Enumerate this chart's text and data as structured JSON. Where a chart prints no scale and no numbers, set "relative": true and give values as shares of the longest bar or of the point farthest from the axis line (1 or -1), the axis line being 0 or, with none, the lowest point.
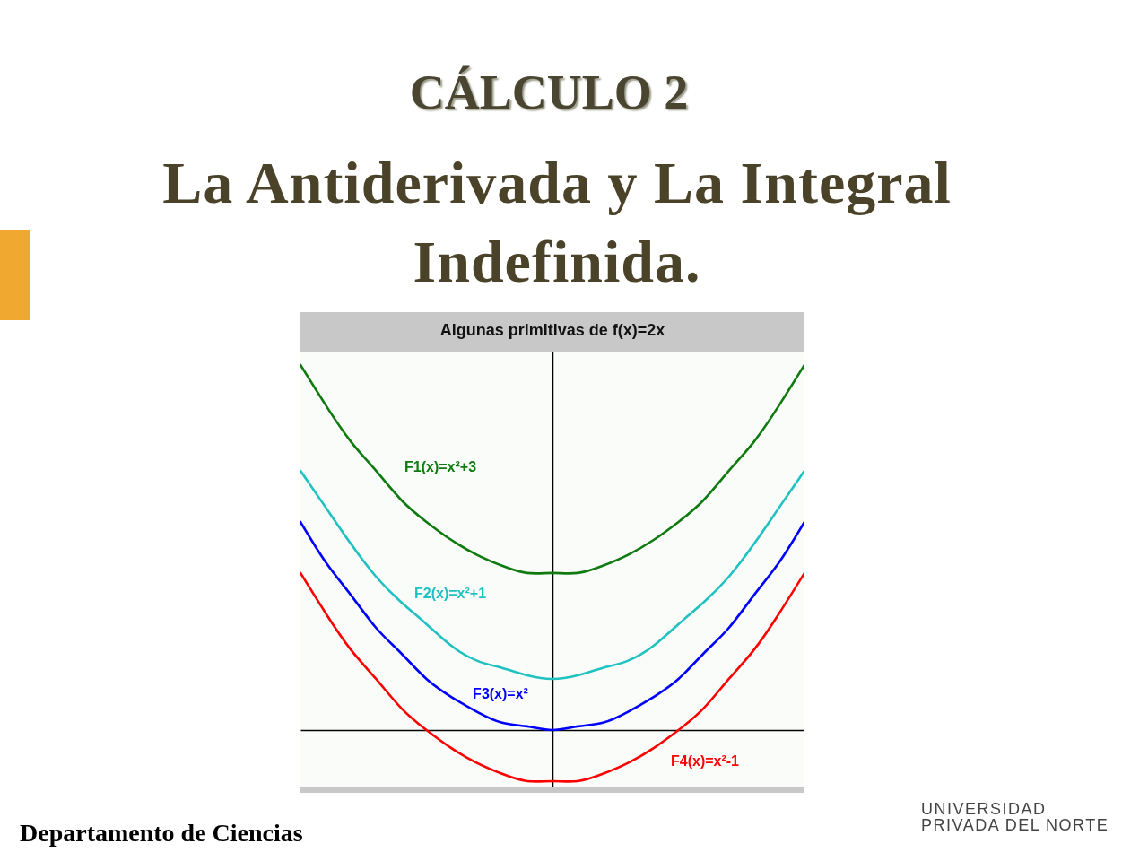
{
  "chart_data": {
    "type": "line",
    "title": "Algunas primitivas de f(x)=2x",
    "relative": true,
    "categories": [
      null,
      null,
      null,
      null,
      null,
      null,
      null,
      null,
      null,
      null,
      null,
      null,
      null,
      null,
      null,
      null,
      null,
      null,
      null,
      null,
      null
    ],
    "series": [
      {
        "name": "F1(x)=x²+3",
        "color": "#0f7a0f",
        "values": [
          1,
          0.89,
          0.79,
          0.71,
          0.63,
          0.57,
          0.52,
          0.48,
          0.45,
          0.43,
          0.43,
          0.43,
          0.45,
          0.48,
          0.52,
          0.57,
          0.63,
          0.71,
          0.79,
          0.89,
          1
        ]
      },
      {
        "name": "F2(x)=x²+1",
        "color": "#1fc1c1",
        "values": [
          0.71,
          0.61,
          0.51,
          0.42,
          0.35,
          0.29,
          0.23,
          0.19,
          0.17,
          0.15,
          0.14,
          0.15,
          0.17,
          0.19,
          0.23,
          0.29,
          0.35,
          0.42,
          0.51,
          0.61,
          0.71
        ]
      },
      {
        "name": "F3(x)=x²",
        "color": "#0000ff",
        "values": [
          0.57,
          0.46,
          0.37,
          0.28,
          0.21,
          0.14,
          0.09,
          0.05,
          0.02,
          0.01,
          0,
          0.01,
          0.02,
          0.05,
          0.09,
          0.14,
          0.21,
          0.28,
          0.37,
          0.46,
          0.57
        ]
      },
      {
        "name": "F4(x)=x²-1",
        "color": "#ff0000",
        "values": [
          0.43,
          0.32,
          0.22,
          0.14,
          0.06,
          0,
          -0.05,
          -0.09,
          -0.12,
          -0.14,
          -0.14,
          -0.14,
          -0.12,
          -0.09,
          -0.05,
          0,
          0.06,
          0.14,
          0.22,
          0.32,
          0.43
        ]
      }
    ],
    "annotations": [
      "CÁLCULO 2",
      "La Antiderivada y La Integral Indefinida.",
      "Departamento de Ciencias",
      "UNIVERSIDAD PRIVADA DEL NORTE"
    ]
  }
}
